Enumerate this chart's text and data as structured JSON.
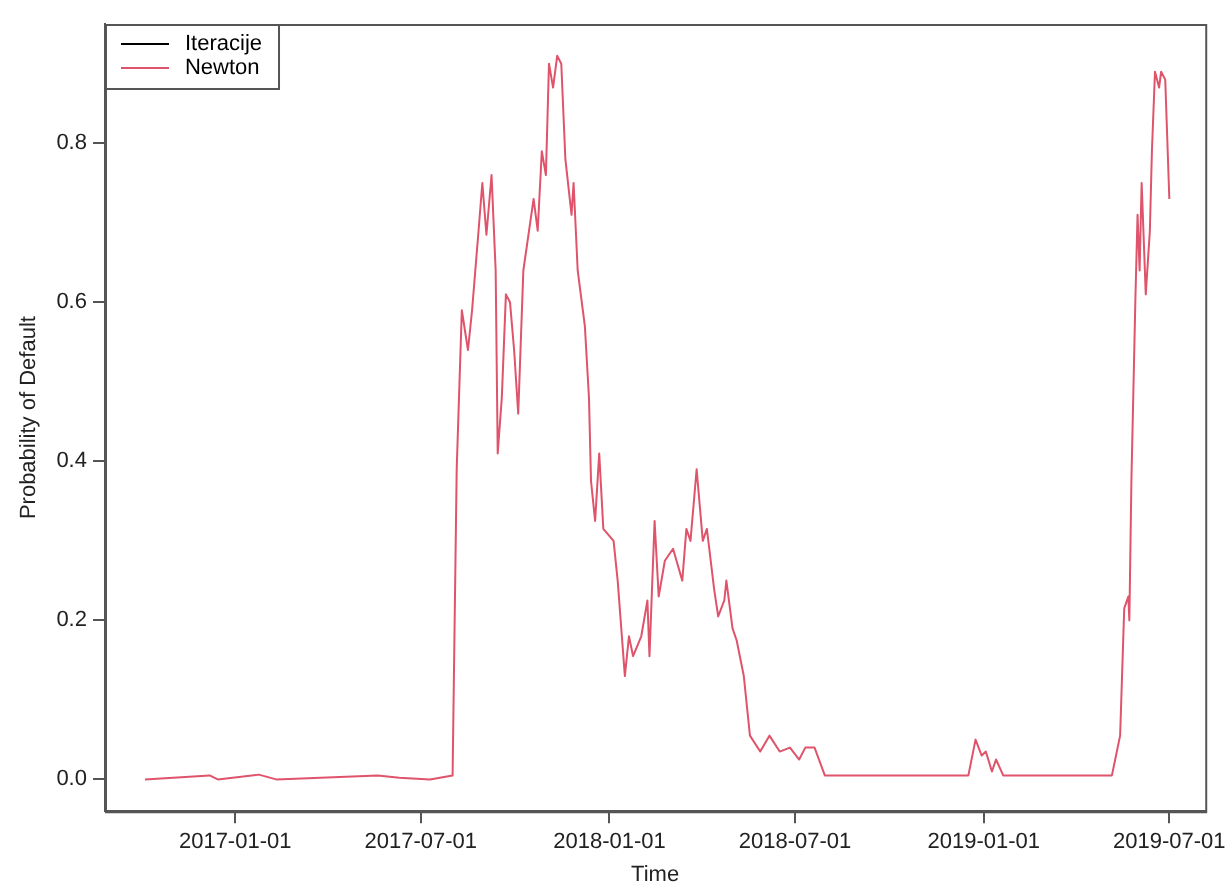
{
  "chart_data": {
    "type": "line",
    "xlabel": "Time",
    "ylabel": "Probability of Default",
    "x": [
      "2016-10-05",
      "2016-12-07",
      "2016-12-15",
      "2017-01-24",
      "2017-02-10",
      "2017-05-20",
      "2017-06-10",
      "2017-07-10",
      "2017-08-01",
      "2017-08-05",
      "2017-08-10",
      "2017-08-16",
      "2017-08-20",
      "2017-08-26",
      "2017-08-30",
      "2017-09-03",
      "2017-09-08",
      "2017-09-12",
      "2017-09-14",
      "2017-09-18",
      "2017-09-22",
      "2017-09-26",
      "2017-09-30",
      "2017-10-04",
      "2017-10-09",
      "2017-10-19",
      "2017-10-23",
      "2017-10-27",
      "2017-10-31",
      "2017-11-03",
      "2017-11-07",
      "2017-11-11",
      "2017-11-15",
      "2017-11-19",
      "2017-11-25",
      "2017-11-27",
      "2017-12-01",
      "2017-12-08",
      "2017-12-12",
      "2017-12-14",
      "2017-12-18",
      "2017-12-22",
      "2017-12-26",
      "2018-01-05",
      "2018-01-09",
      "2018-01-16",
      "2018-01-20",
      "2018-01-24",
      "2018-02-01",
      "2018-02-07",
      "2018-02-09",
      "2018-02-14",
      "2018-02-18",
      "2018-02-24",
      "2018-03-04",
      "2018-03-13",
      "2018-03-17",
      "2018-03-21",
      "2018-03-27",
      "2018-04-02",
      "2018-04-06",
      "2018-04-13",
      "2018-04-17",
      "2018-04-23",
      "2018-04-25",
      "2018-05-01",
      "2018-05-05",
      "2018-05-12",
      "2018-05-18",
      "2018-05-28",
      "2018-06-06",
      "2018-06-16",
      "2018-06-26",
      "2018-07-05",
      "2018-07-11",
      "2018-07-20",
      "2018-07-30",
      "2018-12-17",
      "2018-12-24",
      "2018-12-30",
      "2019-01-03",
      "2019-01-09",
      "2019-01-13",
      "2019-01-20",
      "2019-02-15",
      "2019-04-20",
      "2019-05-06",
      "2019-05-14",
      "2019-05-18",
      "2019-05-22",
      "2019-05-23",
      "2019-05-25",
      "2019-05-29",
      "2019-05-31",
      "2019-06-02",
      "2019-06-04",
      "2019-06-08",
      "2019-06-12",
      "2019-06-14",
      "2019-06-17",
      "2019-06-21",
      "2019-06-23",
      "2019-06-27",
      "2019-07-01"
    ],
    "series": [
      {
        "name": "Iteracije",
        "color": "#000000",
        "values": [
          null,
          null,
          null,
          null,
          null,
          null,
          null,
          null,
          null,
          null,
          null,
          null,
          null,
          null,
          null,
          null,
          null,
          null,
          null,
          null,
          null,
          null,
          null,
          null,
          null,
          null,
          null,
          null,
          null,
          null,
          null,
          null,
          null,
          null,
          null,
          null,
          null,
          null,
          null,
          null,
          null,
          null,
          null,
          null,
          null,
          null,
          null,
          null,
          null,
          null,
          null,
          null,
          null,
          null,
          null,
          null,
          null,
          null,
          null,
          null,
          null,
          null,
          null,
          null,
          null,
          null,
          null,
          null,
          null,
          null,
          null,
          null,
          null,
          null,
          null,
          null,
          null,
          null,
          null,
          null,
          null,
          null,
          null,
          null,
          null,
          null,
          null,
          null,
          null,
          null,
          null,
          null,
          null,
          null,
          null,
          null,
          null,
          null,
          null,
          null,
          null,
          null,
          null,
          null
        ]
      },
      {
        "name": "Newton",
        "color": "#df536b",
        "values": [
          0,
          0.005,
          0,
          0.006,
          0,
          0.005,
          0.002,
          0,
          0.005,
          0.39,
          0.59,
          0.54,
          0.59,
          0.685,
          0.75,
          0.685,
          0.76,
          0.64,
          0.41,
          0.48,
          0.61,
          0.6,
          0.54,
          0.46,
          0.64,
          0.73,
          0.69,
          0.79,
          0.76,
          0.9,
          0.87,
          0.91,
          0.9,
          0.78,
          0.71,
          0.75,
          0.64,
          0.57,
          0.48,
          0.375,
          0.325,
          0.41,
          0.315,
          0.3,
          0.25,
          0.13,
          0.18,
          0.155,
          0.18,
          0.225,
          0.155,
          0.325,
          0.23,
          0.275,
          0.29,
          0.25,
          0.315,
          0.3,
          0.39,
          0.3,
          0.315,
          0.24,
          0.205,
          0.225,
          0.25,
          0.19,
          0.175,
          0.13,
          0.055,
          0.035,
          0.055,
          0.035,
          0.04,
          0.025,
          0.04,
          0.04,
          0.005,
          0.005,
          0.05,
          0.03,
          0.035,
          0.01,
          0.025,
          0.005,
          0.005,
          0.005,
          0.005,
          0.055,
          0.215,
          0.23,
          0.2,
          0.375,
          0.61,
          0.71,
          0.64,
          0.75,
          0.61,
          0.69,
          0.79,
          0.89,
          0.87,
          0.89,
          0.88,
          0.73
        ]
      }
    ],
    "xlim": [
      "2016-08-27",
      "2019-08-05"
    ],
    "xticks": [
      "2017-01-01",
      "2017-07-01",
      "2018-01-01",
      "2018-07-01",
      "2019-01-01",
      "2019-07-01"
    ],
    "ylim": [
      -0.04,
      0.95
    ],
    "yticks": [
      {
        "value": 0,
        "label": "0.0"
      },
      0.2,
      0.4,
      0.6,
      0.8
    ],
    "grid": false,
    "legend": "top left",
    "marker": "none",
    "line_style": "solid"
  }
}
